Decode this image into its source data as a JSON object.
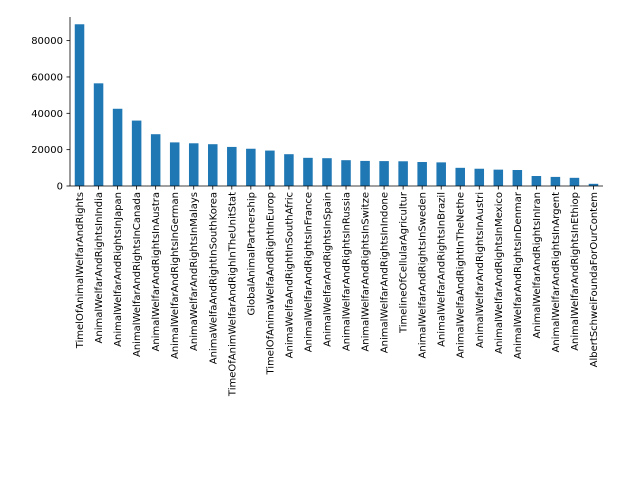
{
  "chart_data": {
    "type": "bar",
    "title": "",
    "xlabel": "",
    "ylabel": "",
    "ylim": [
      0,
      93000
    ],
    "yticks": [
      0,
      20000,
      40000,
      60000,
      80000
    ],
    "grid": false,
    "bar_color": "#1f77b4",
    "categories": [
      "TimelOfAnimalWelfarAndRights",
      "AnimalWelfarAndRightsInIndia",
      "AnimalWelfarAndRightsInJapan",
      "AnimalWelfarAndRightsInCanada",
      "AnimalWelfarAndRightsInAustra",
      "AnimalWelfarAndRightsInGerman",
      "AnimaWelfarAndRightsInMalays",
      "AnimaWelfaAndRightInSouthKorea",
      "TimeOfAnimWelfarAndRighInTheUnitStat",
      "GlobalAnimalPartnership",
      "TimelOfAnimaWelfaAndRightInEurop",
      "AnimaWelfaAndRightInSouthAfric",
      "AnimalWelfarAndRightsInFrance",
      "AnimalWelfarAndRightsInSpain",
      "AnimalWelfarAndRightsInRussia",
      "AnimalWelfarAndRightsInSwitze",
      "AnimalWelfarAndRightsInIndone",
      "TimelineOfCellularAgricultur",
      "AnimalWelfarAndRightsInSweden",
      "AnimalWelfarAndRightsInBrazil",
      "AnimalWelfaAndRightInTheNethe",
      "AnimalWelfarAndRightsInAustri",
      "AnimalWelfarAndRightsInMexico",
      "AnimalWelfarAndRightsInDenmar",
      "AnimalWelfarAndRightsInIran",
      "AnimalWelfarAndRightsInArgent",
      "AnimalWelfarAndRightsInEthiop",
      "AlbertSchweiFoundaForOurContem"
    ],
    "values": [
      89000,
      56500,
      42500,
      36000,
      28500,
      24000,
      23500,
      23000,
      21500,
      20500,
      19500,
      17500,
      15500,
      15300,
      14200,
      13800,
      13700,
      13600,
      13200,
      13000,
      10000,
      9500,
      9000,
      8800,
      5500,
      5000,
      4500,
      1200
    ]
  }
}
